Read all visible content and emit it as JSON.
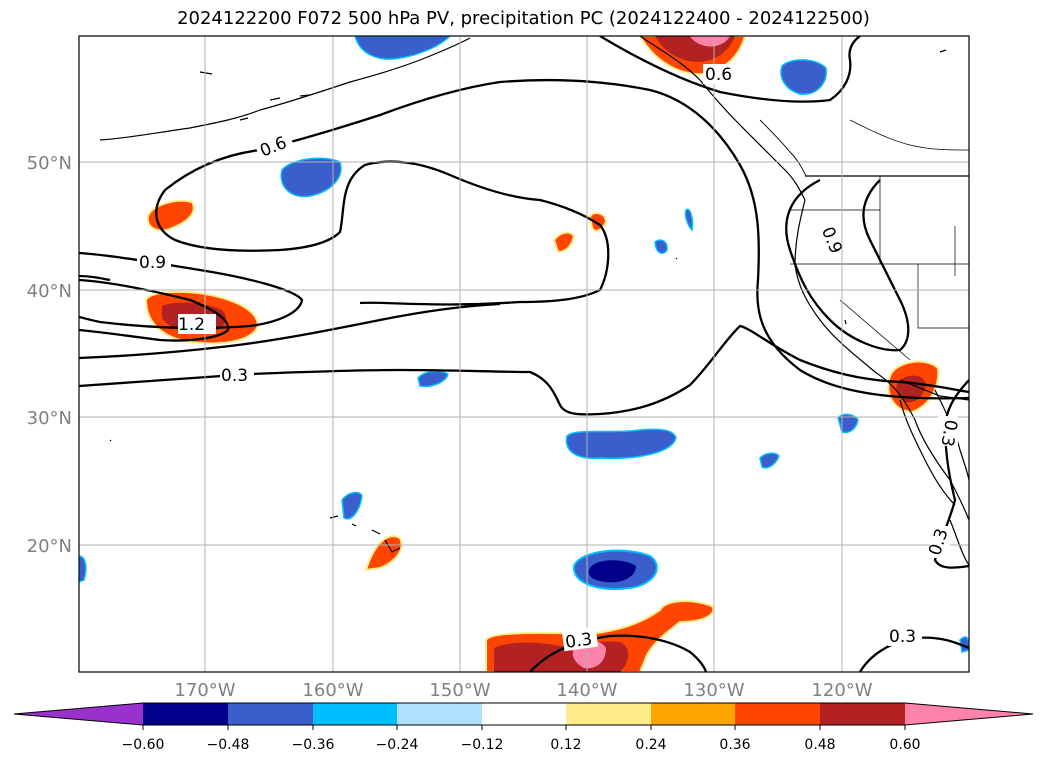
{
  "title": "2024122200 F072 500 hPa PV, precipitation PC (2024122400 - 2024122500)",
  "lat_labels": [
    "50°N",
    "40°N",
    "30°N",
    "20°N"
  ],
  "lon_labels": [
    "170°W",
    "160°W",
    "150°W",
    "140°W",
    "130°W",
    "120°W"
  ],
  "contour_labels": [
    "0.6",
    "0.9",
    "1.2",
    "0.3",
    "0.6",
    "0.9",
    "0.3",
    "0.3",
    "0.3",
    "0.3"
  ],
  "colorbar": {
    "colors": [
      "#9932cc",
      "#00008b",
      "#3a5fcd",
      "#00bfff",
      "#b0e2ff",
      "#ffffff",
      "#ffec8b",
      "#ffa500",
      "#ff4500",
      "#b22222",
      "#ff82ab"
    ],
    "tick_labels": [
      "−0.60",
      "−0.48",
      "−0.36",
      "−0.24",
      "−0.12",
      "0.12",
      "0.24",
      "0.36",
      "0.48",
      "0.60"
    ]
  }
}
